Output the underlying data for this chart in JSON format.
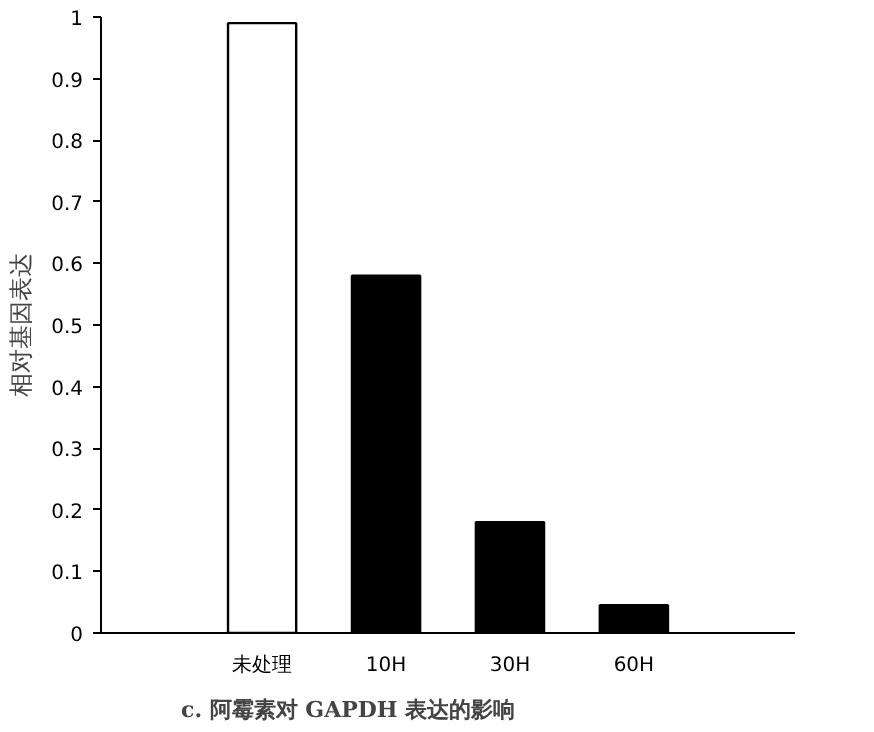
{
  "chart_data": {
    "type": "bar",
    "categories": [
      "未处理",
      "10H",
      "30H",
      "60H"
    ],
    "values": [
      0.99,
      0.58,
      0.18,
      0.045
    ],
    "colors": [
      "#ffffff",
      "#000000",
      "#000000",
      "#000000"
    ],
    "ylabel": "相对基因表达",
    "ylim": [
      0,
      1
    ],
    "yticks": [
      0,
      0.1,
      0.2,
      0.3,
      0.4,
      0.5,
      0.6,
      0.7,
      0.8,
      0.9,
      1
    ],
    "grid": false,
    "annotations": [
      "c.  阿霉素对 GAPDH 表达的影响"
    ]
  }
}
